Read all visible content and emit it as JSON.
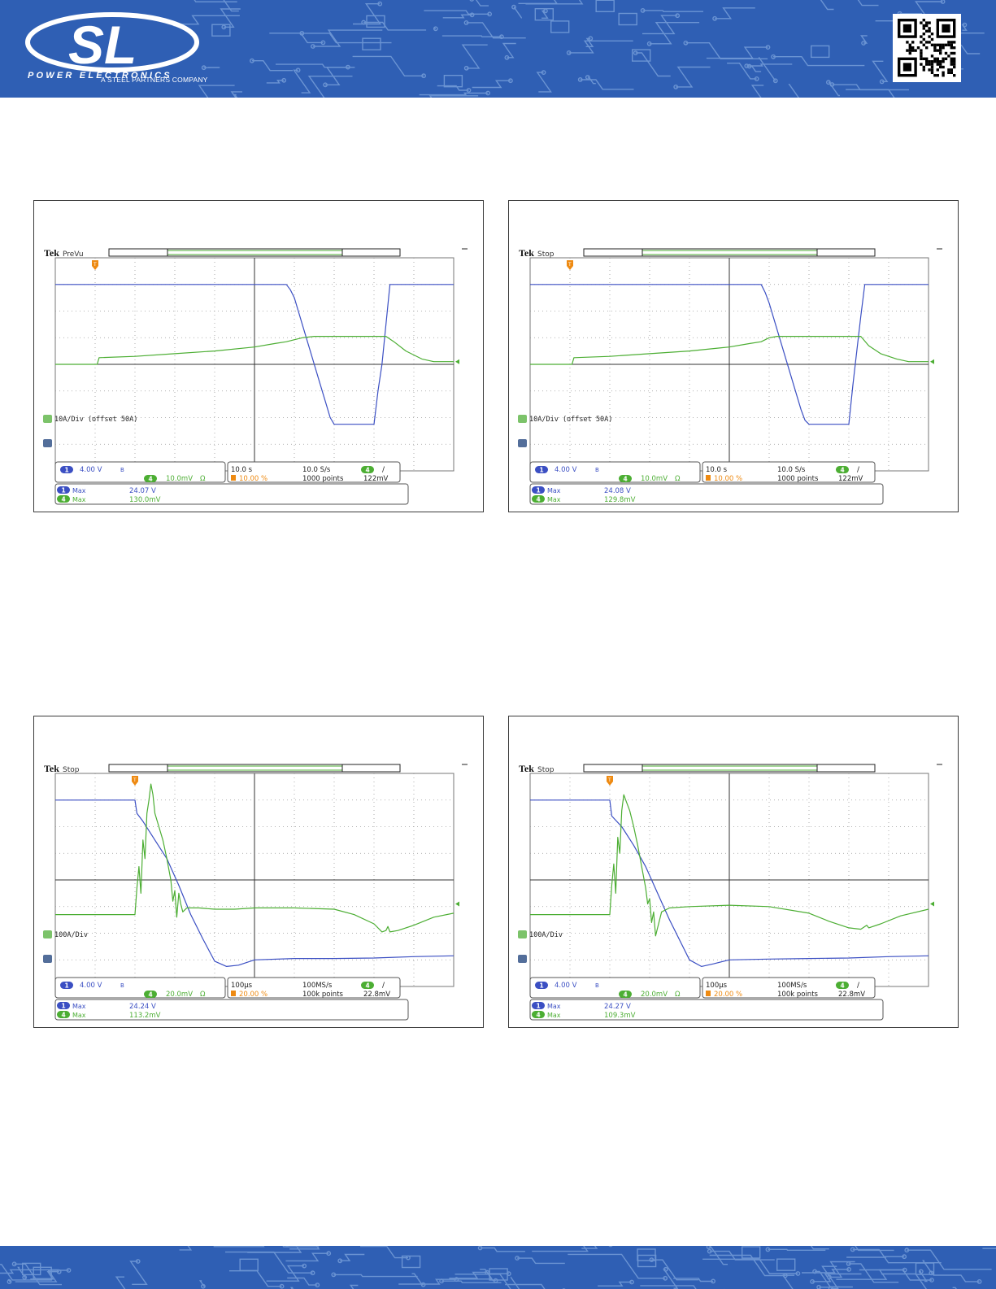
{
  "header": {
    "brand": "SL",
    "division": "POWER ELECTRONICS",
    "tagline": "A STEEL PARTNERS COMPANY",
    "qr_icon": "qr-code-icon",
    "colors": {
      "band": "#2f5fb4",
      "trace_circuit": "#7fa6de"
    }
  },
  "footer": {
    "colors": {
      "band": "#2f5fb4"
    }
  },
  "colors": {
    "ch1": "#3b4fc3",
    "ch4": "#4cae33",
    "trigger": "#ee8a12",
    "grid": "#777777"
  },
  "scopes": [
    {
      "brand": "Tek",
      "state": "PreVu",
      "ref_label": "10A/Div (offset 50A)",
      "settings": {
        "ch1_badge": "1",
        "ch1_scale": "4.00 V",
        "ch1_bw": "B",
        "ch4_badge": "4",
        "ch4_scale": "10.0mV",
        "ch4_coupling": "Ω",
        "timebase": "10.0 s",
        "sample_rate": "10.0 S/s",
        "trig_badge": "4",
        "trig_slope": "/",
        "trig_pos": "10.00 %",
        "record": "1000 points",
        "trig_level": "122mV"
      },
      "measurements": [
        {
          "badge": "1",
          "type": "Max",
          "value": "24.07 V"
        },
        {
          "badge": "4",
          "type": "Max",
          "value": "130.0mV"
        }
      ],
      "chart_data": {
        "type": "line",
        "x_div": [
          0,
          10
        ],
        "y_div": [
          -4,
          4
        ],
        "series": [
          {
            "name": "1",
            "color": "#3b4fc3",
            "points": [
              [
                0,
                3.0
              ],
              [
                5.8,
                3.0
              ],
              [
                5.9,
                2.8
              ],
              [
                6.0,
                2.5
              ],
              [
                6.1,
                2.0
              ],
              [
                6.2,
                1.5
              ],
              [
                6.3,
                1.0
              ],
              [
                6.4,
                0.5
              ],
              [
                6.5,
                0.0
              ],
              [
                6.6,
                -0.5
              ],
              [
                6.7,
                -1.0
              ],
              [
                6.8,
                -1.5
              ],
              [
                6.9,
                -2.0
              ],
              [
                7.0,
                -2.25
              ],
              [
                8.0,
                -2.25
              ],
              [
                8.1,
                -1.0
              ],
              [
                8.2,
                0.0
              ],
              [
                8.3,
                1.5
              ],
              [
                8.4,
                3.0
              ],
              [
                10,
                3.0
              ]
            ]
          },
          {
            "name": "4",
            "color": "#4cae33",
            "points": [
              [
                0,
                0.0
              ],
              [
                1.05,
                0.0
              ],
              [
                1.1,
                0.25
              ],
              [
                2,
                0.3
              ],
              [
                3,
                0.4
              ],
              [
                4,
                0.5
              ],
              [
                5,
                0.65
              ],
              [
                5.5,
                0.78
              ],
              [
                5.8,
                0.85
              ],
              [
                6.2,
                1.0
              ],
              [
                6.5,
                1.05
              ],
              [
                8.3,
                1.05
              ],
              [
                8.5,
                0.85
              ],
              [
                8.8,
                0.5
              ],
              [
                9.2,
                0.2
              ],
              [
                9.5,
                0.1
              ],
              [
                10,
                0.1
              ]
            ]
          }
        ]
      }
    },
    {
      "brand": "Tek",
      "state": "Stop",
      "ref_label": "10A/Div (offset 50A)",
      "settings": {
        "ch1_badge": "1",
        "ch1_scale": "4.00 V",
        "ch1_bw": "B",
        "ch4_badge": "4",
        "ch4_scale": "10.0mV",
        "ch4_coupling": "Ω",
        "timebase": "10.0 s",
        "sample_rate": "10.0 S/s",
        "trig_badge": "4",
        "trig_slope": "/",
        "trig_pos": "10.00 %",
        "record": "1000 points",
        "trig_level": "122mV"
      },
      "measurements": [
        {
          "badge": "1",
          "type": "Max",
          "value": "24.08 V"
        },
        {
          "badge": "4",
          "type": "Max",
          "value": "129.8mV"
        }
      ],
      "chart_data": {
        "type": "line",
        "x_div": [
          0,
          10
        ],
        "y_div": [
          -4,
          4
        ],
        "series": [
          {
            "name": "1",
            "color": "#3b4fc3",
            "points": [
              [
                0,
                3.0
              ],
              [
                5.8,
                3.0
              ],
              [
                5.9,
                2.7
              ],
              [
                6.0,
                2.3
              ],
              [
                6.1,
                1.8
              ],
              [
                6.2,
                1.3
              ],
              [
                6.3,
                0.8
              ],
              [
                6.4,
                0.3
              ],
              [
                6.5,
                -0.2
              ],
              [
                6.6,
                -0.7
              ],
              [
                6.7,
                -1.2
              ],
              [
                6.8,
                -1.7
              ],
              [
                6.9,
                -2.1
              ],
              [
                7.0,
                -2.25
              ],
              [
                8.0,
                -2.25
              ],
              [
                8.1,
                -0.8
              ],
              [
                8.2,
                0.5
              ],
              [
                8.3,
                1.8
              ],
              [
                8.4,
                3.0
              ],
              [
                10,
                3.0
              ]
            ]
          },
          {
            "name": "4",
            "color": "#4cae33",
            "points": [
              [
                0,
                0.0
              ],
              [
                1.05,
                0.0
              ],
              [
                1.1,
                0.25
              ],
              [
                2,
                0.3
              ],
              [
                3,
                0.4
              ],
              [
                4,
                0.5
              ],
              [
                5,
                0.65
              ],
              [
                5.5,
                0.78
              ],
              [
                5.8,
                0.85
              ],
              [
                6.0,
                1.0
              ],
              [
                6.2,
                1.05
              ],
              [
                8.3,
                1.05
              ],
              [
                8.5,
                0.7
              ],
              [
                8.8,
                0.4
              ],
              [
                9.2,
                0.2
              ],
              [
                9.5,
                0.1
              ],
              [
                10,
                0.1
              ]
            ]
          }
        ]
      }
    },
    {
      "brand": "Tek",
      "state": "Stop",
      "ref_label": "100A/Div",
      "settings": {
        "ch1_badge": "1",
        "ch1_scale": "4.00 V",
        "ch1_bw": "B",
        "ch4_badge": "4",
        "ch4_scale": "20.0mV",
        "ch4_coupling": "Ω",
        "timebase": "100μs",
        "sample_rate": "100MS/s",
        "trig_badge": "4",
        "trig_slope": "/",
        "trig_pos": "20.00 %",
        "record": "100k points",
        "trig_level": "22.8mV"
      },
      "measurements": [
        {
          "badge": "1",
          "type": "Max",
          "value": "24.24 V"
        },
        {
          "badge": "4",
          "type": "Max",
          "value": "113.2mV"
        }
      ],
      "chart_data": {
        "type": "line",
        "x_div": [
          0,
          10
        ],
        "y_div": [
          -4,
          4
        ],
        "series": [
          {
            "name": "1",
            "color": "#3b4fc3",
            "points": [
              [
                0,
                3.0
              ],
              [
                2.0,
                3.0
              ],
              [
                2.05,
                2.5
              ],
              [
                2.2,
                2.2
              ],
              [
                2.5,
                1.5
              ],
              [
                2.8,
                0.8
              ],
              [
                3.1,
                -0.2
              ],
              [
                3.4,
                -1.3
              ],
              [
                3.7,
                -2.2
              ],
              [
                4.0,
                -3.05
              ],
              [
                4.3,
                -3.25
              ],
              [
                4.6,
                -3.2
              ],
              [
                5.0,
                -3.0
              ],
              [
                6,
                -2.95
              ],
              [
                7,
                -2.95
              ],
              [
                8,
                -2.93
              ],
              [
                9,
                -2.88
              ],
              [
                10,
                -2.85
              ]
            ]
          },
          {
            "name": "4",
            "color": "#4cae33",
            "points": [
              [
                0,
                -1.3
              ],
              [
                2.0,
                -1.3
              ],
              [
                2.05,
                -0.3
              ],
              [
                2.1,
                0.5
              ],
              [
                2.15,
                -0.5
              ],
              [
                2.2,
                1.5
              ],
              [
                2.25,
                0.8
              ],
              [
                2.3,
                2.5
              ],
              [
                2.35,
                3.0
              ],
              [
                2.4,
                3.6
              ],
              [
                2.45,
                3.2
              ],
              [
                2.5,
                2.5
              ],
              [
                2.6,
                2.0
              ],
              [
                2.7,
                1.5
              ],
              [
                2.8,
                0.8
              ],
              [
                2.9,
                0.0
              ],
              [
                2.95,
                -0.8
              ],
              [
                3.0,
                -0.4
              ],
              [
                3.05,
                -1.4
              ],
              [
                3.1,
                -0.5
              ],
              [
                3.15,
                -0.9
              ],
              [
                3.2,
                -1.2
              ],
              [
                3.3,
                -1.05
              ],
              [
                3.6,
                -1.05
              ],
              [
                4,
                -1.1
              ],
              [
                4.5,
                -1.1
              ],
              [
                5,
                -1.05
              ],
              [
                6,
                -1.05
              ],
              [
                7,
                -1.1
              ],
              [
                7.5,
                -1.3
              ],
              [
                8,
                -1.65
              ],
              [
                8.2,
                -1.95
              ],
              [
                8.3,
                -1.9
              ],
              [
                8.35,
                -1.75
              ],
              [
                8.4,
                -1.95
              ],
              [
                8.6,
                -1.9
              ],
              [
                9,
                -1.7
              ],
              [
                9.5,
                -1.4
              ],
              [
                10,
                -1.25
              ]
            ]
          }
        ]
      }
    },
    {
      "brand": "Tek",
      "state": "Stop",
      "ref_label": "100A/Div",
      "settings": {
        "ch1_badge": "1",
        "ch1_scale": "4.00 V",
        "ch1_bw": "B",
        "ch4_badge": "4",
        "ch4_scale": "20.0mV",
        "ch4_coupling": "Ω",
        "timebase": "100μs",
        "sample_rate": "100MS/s",
        "trig_badge": "4",
        "trig_slope": "/",
        "trig_pos": "20.00 %",
        "record": "100k points",
        "trig_level": "22.8mV"
      },
      "measurements": [
        {
          "badge": "1",
          "type": "Max",
          "value": "24.27 V"
        },
        {
          "badge": "4",
          "type": "Max",
          "value": "109.3mV"
        }
      ],
      "chart_data": {
        "type": "line",
        "x_div": [
          0,
          10
        ],
        "y_div": [
          -4,
          4
        ],
        "series": [
          {
            "name": "1",
            "color": "#3b4fc3",
            "points": [
              [
                0,
                3.0
              ],
              [
                2.0,
                3.0
              ],
              [
                2.05,
                2.4
              ],
              [
                2.3,
                2.0
              ],
              [
                2.6,
                1.3
              ],
              [
                2.9,
                0.5
              ],
              [
                3.2,
                -0.5
              ],
              [
                3.5,
                -1.5
              ],
              [
                3.8,
                -2.4
              ],
              [
                4.0,
                -3.0
              ],
              [
                4.3,
                -3.25
              ],
              [
                4.6,
                -3.15
              ],
              [
                5.0,
                -3.0
              ],
              [
                6,
                -2.97
              ],
              [
                7,
                -2.95
              ],
              [
                8,
                -2.93
              ],
              [
                9,
                -2.88
              ],
              [
                10,
                -2.85
              ]
            ]
          },
          {
            "name": "4",
            "color": "#4cae33",
            "points": [
              [
                0,
                -1.3
              ],
              [
                2.0,
                -1.3
              ],
              [
                2.05,
                -0.2
              ],
              [
                2.1,
                0.6
              ],
              [
                2.15,
                -0.5
              ],
              [
                2.2,
                1.6
              ],
              [
                2.25,
                1.0
              ],
              [
                2.3,
                2.6
              ],
              [
                2.35,
                3.2
              ],
              [
                2.4,
                3.0
              ],
              [
                2.5,
                2.6
              ],
              [
                2.6,
                2.0
              ],
              [
                2.7,
                1.3
              ],
              [
                2.8,
                0.5
              ],
              [
                2.9,
                -0.3
              ],
              [
                2.95,
                -0.9
              ],
              [
                3.0,
                -0.7
              ],
              [
                3.05,
                -1.6
              ],
              [
                3.1,
                -1.2
              ],
              [
                3.15,
                -2.1
              ],
              [
                3.3,
                -1.2
              ],
              [
                3.5,
                -1.05
              ],
              [
                4,
                -1.0
              ],
              [
                5,
                -0.95
              ],
              [
                6,
                -1.0
              ],
              [
                7,
                -1.25
              ],
              [
                7.5,
                -1.55
              ],
              [
                8,
                -1.8
              ],
              [
                8.3,
                -1.85
              ],
              [
                8.45,
                -1.7
              ],
              [
                8.5,
                -1.8
              ],
              [
                8.8,
                -1.65
              ],
              [
                9.3,
                -1.35
              ],
              [
                10,
                -1.1
              ]
            ]
          }
        ]
      }
    }
  ]
}
